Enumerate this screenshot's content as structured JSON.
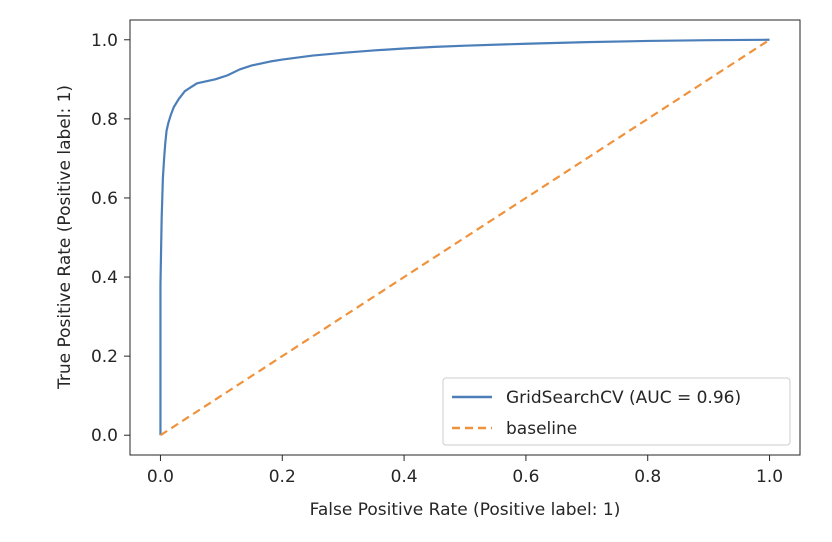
{
  "chart_data": {
    "type": "line",
    "title": "",
    "xlabel": "False Positive Rate (Positive label: 1)",
    "ylabel": "True Positive Rate (Positive label: 1)",
    "xlim": [
      -0.05,
      1.05
    ],
    "ylim": [
      -0.05,
      1.05
    ],
    "xticks": [
      0.0,
      0.2,
      0.4,
      0.6,
      0.8,
      1.0
    ],
    "yticks": [
      0.0,
      0.2,
      0.4,
      0.6,
      0.8,
      1.0
    ],
    "xtick_labels": [
      "0.0",
      "0.2",
      "0.4",
      "0.6",
      "0.8",
      "1.0"
    ],
    "ytick_labels": [
      "0.0",
      "0.2",
      "0.4",
      "0.6",
      "0.8",
      "1.0"
    ],
    "grid": false,
    "legend_position": "lower-right",
    "series": [
      {
        "name": "GridSearchCV (AUC = 0.96)",
        "color": "#4c7fb9",
        "style": "solid",
        "x": [
          0.0,
          0.0,
          0.002,
          0.004,
          0.006,
          0.008,
          0.01,
          0.013,
          0.017,
          0.022,
          0.03,
          0.04,
          0.05,
          0.06,
          0.075,
          0.09,
          0.1,
          0.11,
          0.13,
          0.15,
          0.18,
          0.2,
          0.25,
          0.3,
          0.35,
          0.4,
          0.45,
          0.5,
          0.6,
          0.7,
          0.8,
          0.9,
          1.0
        ],
        "y": [
          0.0,
          0.38,
          0.55,
          0.65,
          0.7,
          0.74,
          0.77,
          0.79,
          0.81,
          0.83,
          0.85,
          0.87,
          0.88,
          0.89,
          0.895,
          0.9,
          0.905,
          0.91,
          0.925,
          0.935,
          0.945,
          0.95,
          0.96,
          0.967,
          0.973,
          0.978,
          0.982,
          0.985,
          0.99,
          0.994,
          0.997,
          0.999,
          1.0
        ]
      },
      {
        "name": "baseline",
        "color": "#f0923b",
        "style": "dashed",
        "x": [
          0.0,
          1.0
        ],
        "y": [
          0.0,
          1.0
        ]
      }
    ]
  }
}
